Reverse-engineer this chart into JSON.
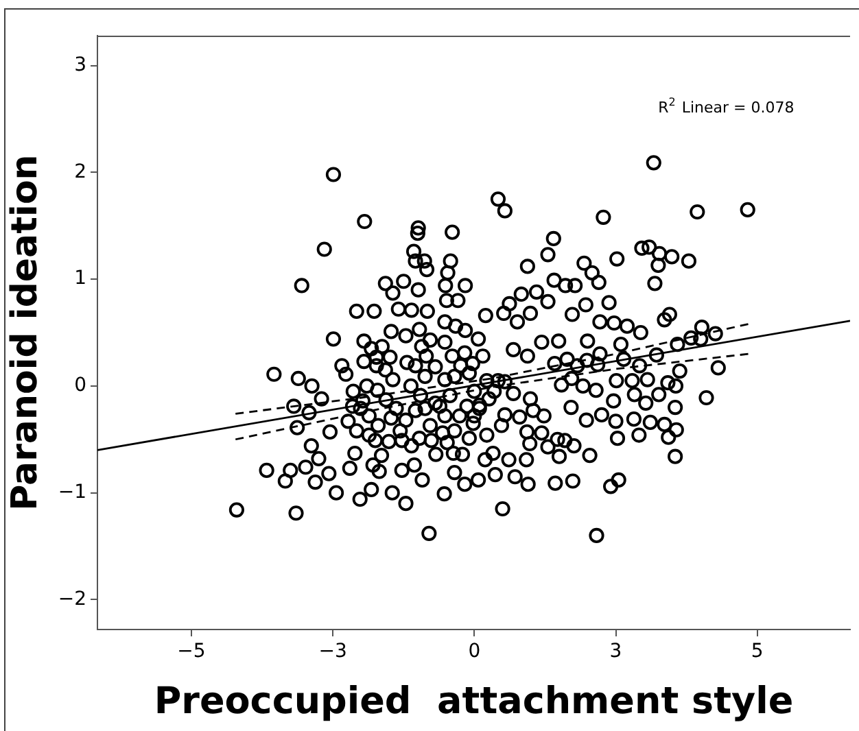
{
  "chart_data": {
    "type": "scatter",
    "xlabel": "Preoccupied  attachment style",
    "ylabel": "Paranoid ideation",
    "xlim": [
      -6.66,
      6.64
    ],
    "ylim": [
      -2.28,
      3.28
    ],
    "xticks": [
      {
        "value": -5,
        "label": "−5"
      },
      {
        "value": -2.5,
        "label": "−3"
      },
      0,
      {
        "value": 2.5,
        "label": "3"
      },
      5
    ],
    "yticks": [
      {
        "value": -2,
        "label": "−2"
      },
      {
        "value": -1,
        "label": "−1"
      },
      0,
      1,
      2,
      3
    ],
    "grid": false,
    "legend": false,
    "annotations": [
      "R$^{2}$ Linear = 0.078"
    ],
    "series": [
      {
        "type": "scatter",
        "color": "#000000",
        "marker": "circle",
        "x": [
          -2.49,
          -1.94,
          -2.65,
          -3.05,
          3.17,
          0.42,
          0.54,
          2.28,
          3.94,
          4.83,
          -0.99,
          -1.0,
          -0.39,
          1.4,
          -1.07,
          -0.88,
          -1.04,
          -0.84,
          -0.42,
          -0.47,
          1.3,
          0.94,
          2.96,
          3.09,
          3.27,
          3.49,
          3.79,
          3.25,
          2.52,
          1.94,
          2.08,
          3.19,
          -1.57,
          -1.25,
          -1.44,
          -0.99,
          -0.51,
          -0.16,
          1.41,
          1.61,
          1.78,
          2.2,
          0.83,
          1.1,
          1.3,
          2.38,
          0.62,
          -0.49,
          -0.29,
          -2.08,
          -1.77,
          -1.34,
          -1.11,
          -0.83,
          0.2,
          0.99,
          1.97,
          1.73,
          0.52,
          0.76,
          3.45,
          3.36,
          4.02,
          4.26,
          4.0,
          3.83,
          3.59,
          2.7,
          2.94,
          2.47,
          2.22,
          2.59,
          2.0,
          1.49,
          1.19,
          -2.49,
          -1.95,
          -1.47,
          -1.21,
          -0.97,
          -0.52,
          -0.33,
          -0.16,
          0.07,
          0.15,
          0.69,
          0.94,
          3.22,
          3.63,
          4.31,
          4.1,
          -2.34,
          -2.27,
          -3.54,
          -3.11,
          -2.87,
          -2.7,
          -3.19,
          -2.92,
          -3.13,
          -2.55,
          -2.23,
          -2.14,
          -2.88,
          -2.75,
          -2.98,
          -3.67,
          -3.25,
          -3.34,
          -2.81,
          -2.57,
          -2.44,
          -4.2,
          -3.15,
          -2.2,
          -2.02,
          -1.82,
          -1.45,
          -1.21,
          -0.8,
          -0.53,
          -0.17,
          0.07,
          0.37,
          0.5,
          0.72,
          0.95,
          1.43,
          1.74,
          2.16,
          2.41,
          2.55,
          3.55,
          2.04,
          1.5,
          0.92,
          0.61,
          0.19,
          -0.68,
          -1.06,
          -1.28,
          -1.68,
          -1.79,
          -2.11,
          -0.92,
          -0.35,
          3.43,
          2.53,
          2.91,
          3.57,
          3.36,
          3.11,
          2.5,
          2.82,
          2.25,
          1.98,
          1.71,
          2.46,
          2.83,
          3.26,
          3.56,
          3.42,
          3.06,
          2.92,
          2.64,
          2.79,
          2.51,
          2.15,
          1.92,
          1.72,
          1.54,
          1.42,
          1.64,
          1.82,
          2.18,
          2.22,
          1.99,
          3.55,
          3.03,
          1.47,
          1.6,
          1.76,
          1.3,
          1.19,
          0.98,
          0.93,
          1.04,
          0.99,
          1.23,
          0.8,
          0.54,
          0.48,
          0.69,
          0.42,
          0.54,
          0.22,
          0.35,
          0.26,
          0.09,
          -0.02,
          -0.09,
          0.22,
          0.33,
          -0.21,
          -0.37,
          -0.48,
          -0.56,
          -0.35,
          -0.26,
          -0.13,
          0.09,
          -0.52,
          -0.52,
          -0.35,
          -0.24,
          -0.09,
          -0.03,
          -0.17,
          -0.39,
          -0.52,
          -0.78,
          -0.93,
          -0.85,
          -0.69,
          -0.87,
          -1.04,
          -1.19,
          -1.12,
          -0.95,
          -0.87,
          -0.69,
          -1.04,
          -1.21,
          -0.78,
          -0.97,
          -1.11,
          -0.76,
          -1.47,
          -1.38,
          -1.56,
          -1.71,
          -1.44,
          -1.57,
          -1.73,
          -1.49,
          -1.73,
          -1.95,
          -1.9,
          -1.97,
          -1.86,
          -1.7,
          -1.51,
          -1.75,
          -1.64,
          -1.86,
          -2.15,
          -2.01,
          -1.82,
          -1.63,
          -2.08,
          -1.31,
          -1.28,
          -0.61,
          -0.43,
          0.0,
          0.0
        ],
        "values": [
          1.98,
          1.54,
          1.28,
          0.94,
          2.09,
          1.75,
          1.64,
          1.58,
          1.63,
          1.65,
          1.48,
          1.43,
          1.44,
          1.38,
          1.26,
          1.17,
          1.17,
          1.09,
          1.17,
          1.06,
          1.23,
          1.12,
          1.29,
          1.3,
          1.24,
          1.21,
          1.17,
          1.13,
          1.19,
          1.15,
          1.06,
          0.96,
          0.96,
          0.98,
          0.87,
          0.9,
          0.94,
          0.94,
          0.99,
          0.94,
          0.94,
          0.97,
          0.86,
          0.88,
          0.79,
          0.78,
          0.77,
          0.8,
          0.8,
          0.7,
          0.7,
          0.72,
          0.71,
          0.7,
          0.66,
          0.68,
          0.76,
          0.67,
          0.68,
          0.6,
          0.67,
          0.62,
          0.55,
          0.49,
          0.44,
          0.45,
          0.39,
          0.56,
          0.5,
          0.59,
          0.6,
          0.39,
          0.42,
          0.42,
          0.41,
          0.44,
          0.42,
          0.51,
          0.47,
          0.53,
          0.6,
          0.56,
          0.52,
          0.44,
          0.28,
          0.34,
          0.28,
          0.29,
          0.14,
          0.17,
          -0.11,
          0.19,
          0.11,
          0.11,
          0.07,
          0.0,
          -0.12,
          -0.19,
          -0.25,
          -0.39,
          -0.43,
          -0.33,
          -0.05,
          -0.56,
          -0.68,
          -0.76,
          -0.79,
          -0.79,
          -0.89,
          -0.9,
          -0.82,
          -1.0,
          -1.16,
          -1.19,
          -0.77,
          -1.06,
          -0.97,
          -1.0,
          -1.1,
          -1.38,
          -1.01,
          -0.92,
          -0.88,
          -0.83,
          -1.15,
          -0.85,
          -0.92,
          -0.91,
          -0.89,
          -1.4,
          -0.94,
          -0.88,
          -0.66,
          -0.65,
          -0.66,
          -0.69,
          -0.69,
          -0.69,
          -0.64,
          -0.74,
          -0.79,
          -0.8,
          -0.74,
          -0.63,
          -0.88,
          -0.81,
          -0.48,
          -0.49,
          -0.46,
          -0.41,
          -0.36,
          -0.34,
          -0.33,
          -0.31,
          -0.27,
          -0.32,
          -0.2,
          -0.14,
          -0.08,
          -0.08,
          0.0,
          0.03,
          0.06,
          0.19,
          0.25,
          0.05,
          0.05,
          -0.04,
          0.0,
          0.07,
          0.01,
          0.21,
          0.25,
          0.19,
          0.2,
          0.3,
          0.24,
          -0.2,
          -0.16,
          -0.5,
          -0.51,
          -0.56,
          -0.57,
          -0.44,
          -0.54,
          -0.43,
          -0.23,
          -0.12,
          -0.28,
          -0.29,
          -0.27,
          -0.37,
          -0.07,
          0.05,
          0.04,
          0.05,
          -0.05,
          -0.12,
          -0.18,
          -0.35,
          -0.49,
          -0.46,
          -0.63,
          -0.64,
          -0.63,
          -0.53,
          -0.44,
          -0.42,
          -0.28,
          -0.19,
          -0.21,
          -0.28,
          0.06,
          0.09,
          0.19,
          0.12,
          0.21,
          0.31,
          0.28,
          0.41,
          0.43,
          0.37,
          0.28,
          0.18,
          0.09,
          0.19,
          0.22,
          0.0,
          -0.09,
          -0.21,
          -0.16,
          -0.23,
          -0.32,
          -0.37,
          -0.49,
          -0.56,
          -0.51,
          -0.3,
          -0.21,
          -0.13,
          -0.04,
          0.06,
          0.15,
          0.19,
          0.27,
          0.27,
          0.23,
          0.0,
          -0.14,
          -0.28,
          -0.37,
          -0.52,
          -0.51,
          -0.65,
          -0.46,
          -0.19,
          -0.21,
          0.35,
          0.37,
          -0.42,
          -0.42,
          -0.51,
          -0.19,
          -0.09,
          -0.05,
          -0.28
        ]
      },
      {
        "type": "line",
        "color": "#000000",
        "line_style": "solid",
        "x": [
          -6.66,
          6.64
        ],
        "values": [
          -0.6,
          0.61
        ]
      },
      {
        "type": "line",
        "color": "#000000",
        "line_style": "dashed",
        "x": [
          -4.22,
          -2,
          0.3,
          2.5,
          4.84
        ],
        "values": [
          -0.26,
          -0.11,
          0.07,
          0.3,
          0.58
        ]
      },
      {
        "type": "line",
        "color": "#000000",
        "line_style": "dashed",
        "x": [
          -4.22,
          -2,
          0.3,
          2.5,
          4.84
        ],
        "values": [
          -0.5,
          -0.25,
          -0.01,
          0.16,
          0.3
        ]
      }
    ]
  }
}
